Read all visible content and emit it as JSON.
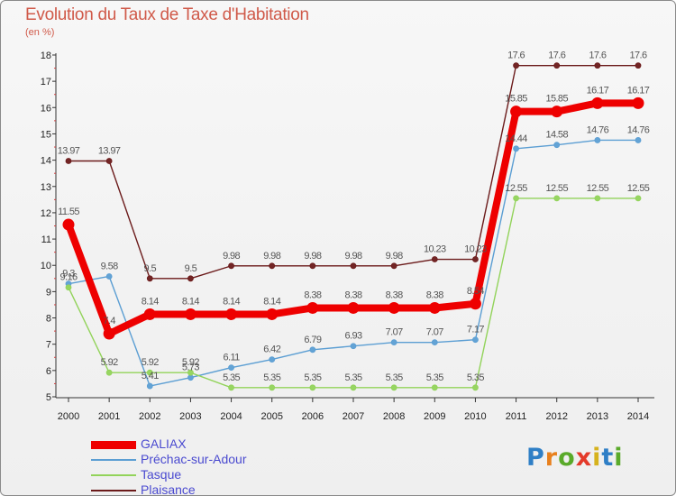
{
  "title": "Evolution du Taux de Taxe d'Habitation",
  "subtitle": "(en %)",
  "logo": {
    "letters": [
      "P",
      "r",
      "o",
      "x",
      "i",
      "t",
      "i"
    ],
    "colors": [
      "#2f7fc6",
      "#e8801d",
      "#5aaa2a",
      "#e43a2a",
      "#d6b21d",
      "#2f7fc6",
      "#5aaa2a"
    ]
  },
  "chart_data": {
    "type": "line",
    "x": [
      2000,
      2001,
      2002,
      2003,
      2004,
      2005,
      2006,
      2007,
      2008,
      2009,
      2010,
      2011,
      2012,
      2013,
      2014
    ],
    "ylim": [
      5,
      18
    ],
    "yticks": [
      5,
      6,
      7,
      8,
      9,
      10,
      11,
      12,
      13,
      14,
      15,
      16,
      17,
      18
    ],
    "grid": false,
    "legend": "bottom-left",
    "series": [
      {
        "name": "Plaisance",
        "color": "#6b1a1a",
        "values": [
          13.97,
          13.97,
          9.5,
          9.5,
          9.98,
          9.98,
          9.98,
          9.98,
          9.98,
          10.23,
          10.23,
          17.6,
          17.6,
          17.6,
          17.6
        ],
        "labels": [
          "13.97",
          "13.97",
          "9.5",
          "9.5",
          "9.98",
          "9.98",
          "9.98",
          "9.98",
          "9.98",
          "10.23",
          "10.23",
          "17.6",
          "17.6",
          "17.6",
          "17.6"
        ]
      },
      {
        "name": "Préchac-sur-Adour",
        "color": "#5b9ed3",
        "values": [
          9.3,
          9.58,
          5.41,
          5.73,
          6.11,
          6.42,
          6.79,
          6.93,
          7.07,
          7.07,
          7.17,
          14.44,
          14.58,
          14.76,
          14.76
        ],
        "labels": [
          "9.3",
          "9.58",
          "5.41",
          "5.73",
          "6.11",
          "6.42",
          "6.79",
          "6.93",
          "7.07",
          "7.07",
          "7.17",
          "14.44",
          "14.58",
          "14.76",
          "14.76"
        ]
      },
      {
        "name": "Tasque",
        "color": "#92d35a",
        "values": [
          9.16,
          5.92,
          5.92,
          5.92,
          5.35,
          5.35,
          5.35,
          5.35,
          5.35,
          5.35,
          5.35,
          12.55,
          12.55,
          12.55,
          12.55
        ],
        "labels": [
          "9.16",
          "5.92",
          "5.92",
          "5.92",
          "5.35",
          "5.35",
          "5.35",
          "5.35",
          "5.35",
          "5.35",
          "5.35",
          "12.55",
          "12.55",
          "12.55",
          "12.55"
        ]
      },
      {
        "name": "GALIAX",
        "color": "#ee0000",
        "values": [
          11.55,
          7.4,
          8.14,
          8.14,
          8.14,
          8.14,
          8.38,
          8.38,
          8.38,
          8.38,
          8.54,
          15.85,
          15.85,
          16.17,
          16.17
        ],
        "labels": [
          "11.55",
          "7.4",
          "8.14",
          "8.14",
          "8.14",
          "8.14",
          "8.38",
          "8.38",
          "8.38",
          "8.38",
          "8.54",
          "15.85",
          "15.85",
          "16.17",
          "16.17"
        ]
      }
    ],
    "legend_order": [
      "GALIAX",
      "Préchac-sur-Adour",
      "Tasque",
      "Plaisance"
    ]
  }
}
